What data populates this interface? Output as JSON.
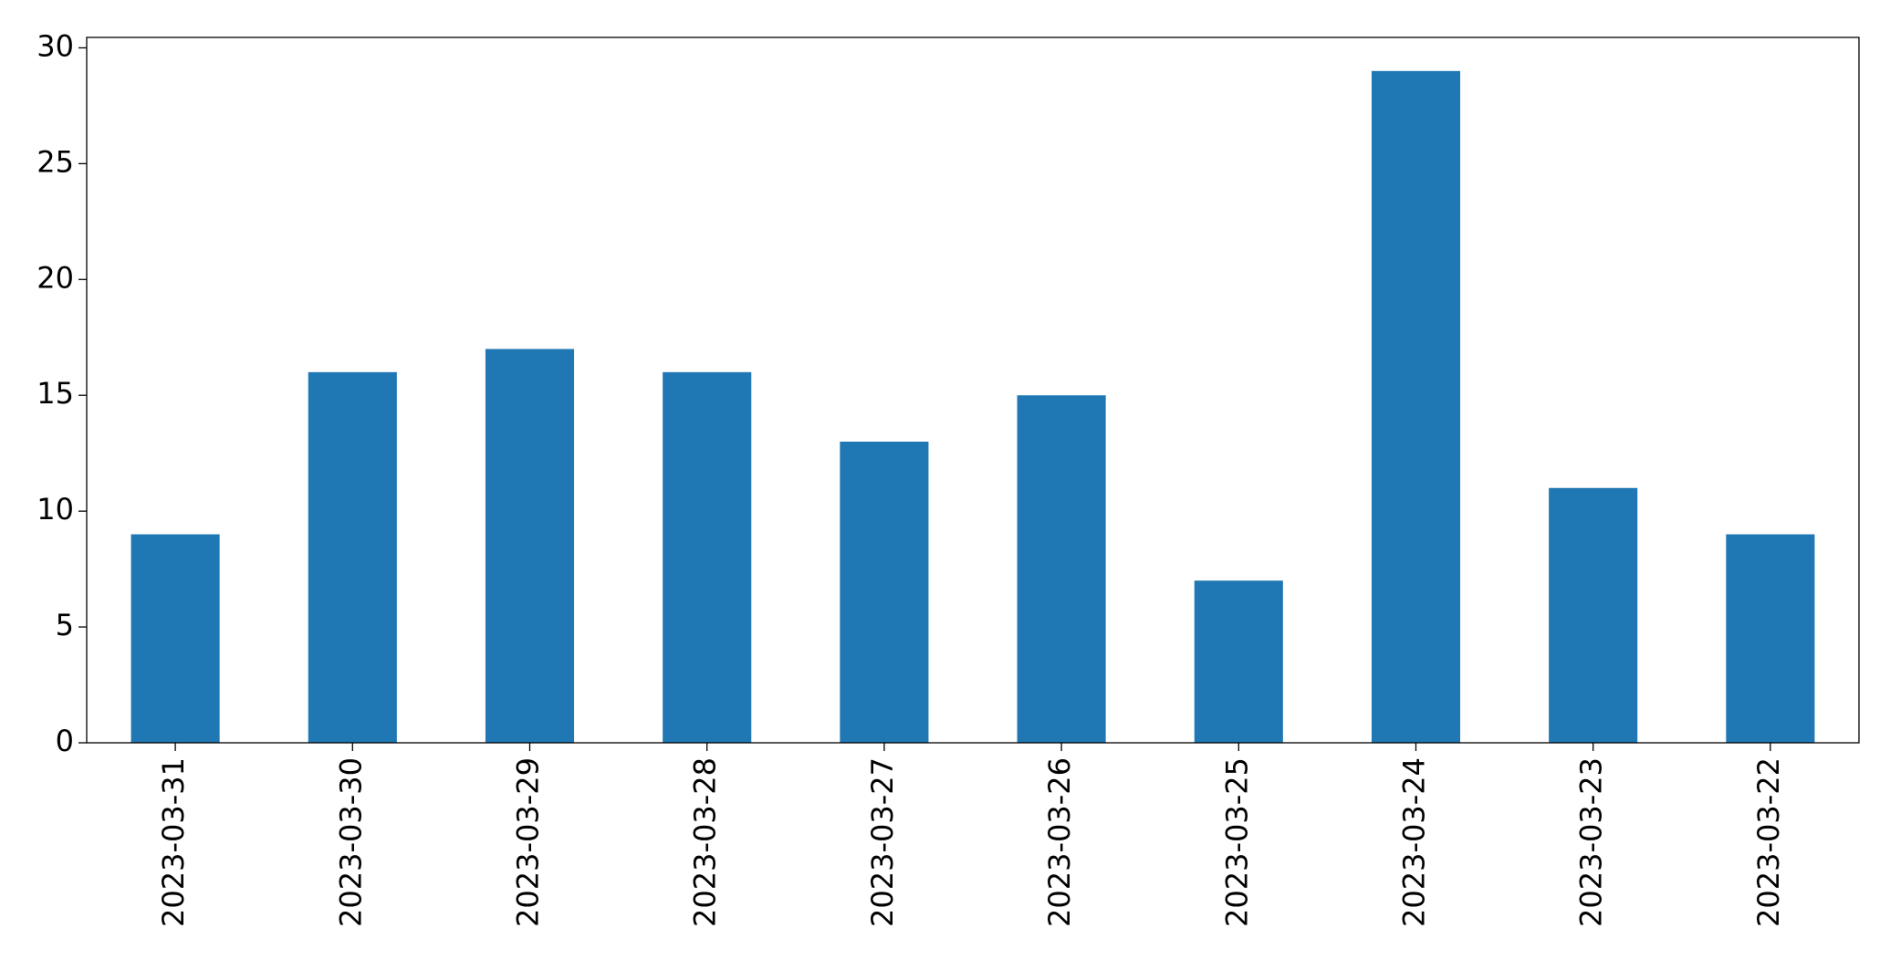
{
  "chart_data": {
    "type": "bar",
    "categories": [
      "2023-03-31",
      "2023-03-30",
      "2023-03-29",
      "2023-03-28",
      "2023-03-27",
      "2023-03-26",
      "2023-03-25",
      "2023-03-24",
      "2023-03-23",
      "2023-03-22"
    ],
    "values": [
      9,
      16,
      17,
      16,
      13,
      15,
      7,
      29,
      11,
      9
    ],
    "color": "#1f77b4",
    "ylim": [
      0,
      30.45
    ],
    "yticks": [
      0,
      5,
      10,
      15,
      20,
      25,
      30
    ],
    "grid": false
  }
}
